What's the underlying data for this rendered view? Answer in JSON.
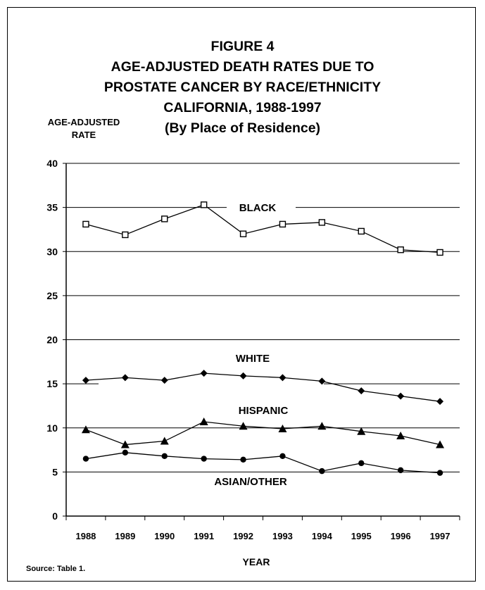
{
  "title_lines": [
    "FIGURE 4",
    "AGE-ADJUSTED DEATH RATES DUE TO",
    "PROSTATE CANCER BY RACE/ETHNICITY",
    "CALIFORNIA, 1988-1997",
    "(By Place of Residence)"
  ],
  "ylabel_lines": [
    "AGE-ADJUSTED",
    "RATE"
  ],
  "source": "Source:  Table 1.",
  "chart_data": {
    "type": "line",
    "title": "FIGURE 4 AGE-ADJUSTED DEATH RATES DUE TO PROSTATE CANCER BY RACE/ETHNICITY CALIFORNIA, 1988-1997 (By Place of Residence)",
    "xlabel": "YEAR",
    "ylabel": "AGE-ADJUSTED RATE",
    "categories": [
      "1988",
      "1989",
      "1990",
      "1991",
      "1992",
      "1993",
      "1994",
      "1995",
      "1996",
      "1997"
    ],
    "ylim": [
      0,
      40
    ],
    "yticks": [
      0,
      5,
      10,
      15,
      20,
      25,
      30,
      35,
      40
    ],
    "grid": "horizontal",
    "series": [
      {
        "name": "BLACK",
        "marker": "open-square",
        "values": [
          33.1,
          31.9,
          33.7,
          35.3,
          32.0,
          33.1,
          33.3,
          32.3,
          30.2,
          29.9
        ]
      },
      {
        "name": "WHITE",
        "marker": "diamond",
        "values": [
          15.4,
          15.7,
          15.4,
          16.2,
          15.9,
          15.7,
          15.3,
          14.2,
          13.6,
          13.0
        ]
      },
      {
        "name": "HISPANIC",
        "marker": "triangle",
        "values": [
          9.8,
          8.1,
          8.5,
          10.7,
          10.2,
          9.9,
          10.2,
          9.6,
          9.1,
          8.1
        ]
      },
      {
        "name": "ASIAN/OTHER",
        "marker": "circle",
        "values": [
          6.5,
          7.2,
          6.8,
          6.5,
          6.4,
          6.8,
          5.1,
          6.0,
          5.2,
          4.9
        ]
      }
    ]
  }
}
